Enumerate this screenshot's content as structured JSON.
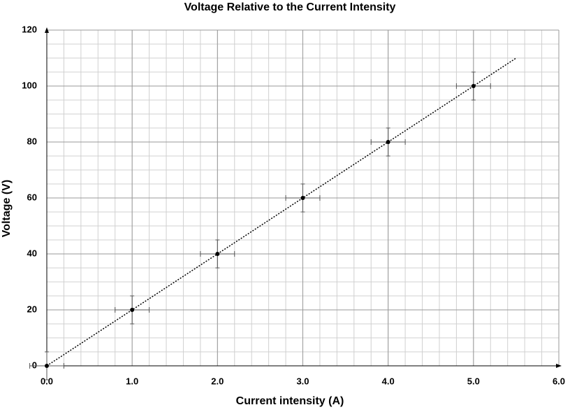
{
  "chart_data": {
    "type": "scatter",
    "title": "Voltage Relative to the Current Intensity",
    "x_label": "Current intensity (A)",
    "y_label": "Voltage (V)",
    "x": [
      0,
      1,
      2,
      3,
      4,
      5
    ],
    "y": [
      0,
      20,
      40,
      60,
      80,
      100
    ],
    "x_error": [
      0.2,
      0.2,
      0.2,
      0.2,
      0.2,
      0.2
    ],
    "y_error": [
      5,
      5,
      5,
      5,
      5,
      5
    ],
    "color": "#000000",
    "trendline": {
      "x": [
        0,
        5.5
      ],
      "y": [
        0,
        110
      ]
    },
    "xlim": [
      0,
      6
    ],
    "ylim": [
      0,
      120
    ],
    "xticks": [
      {
        "value": 0,
        "label": "0.0"
      },
      {
        "value": 1,
        "label": "1.0"
      },
      {
        "value": 2,
        "label": "2.0"
      },
      {
        "value": 3,
        "label": "3.0"
      },
      {
        "value": 4,
        "label": "4.0"
      },
      {
        "value": 5,
        "label": "5.0"
      },
      {
        "value": 6,
        "label": "6.0"
      }
    ],
    "yticks": [
      0,
      20,
      40,
      60,
      80,
      100,
      120
    ],
    "grid": true,
    "minor_grid": {
      "x": 0.2,
      "y": 5
    }
  }
}
